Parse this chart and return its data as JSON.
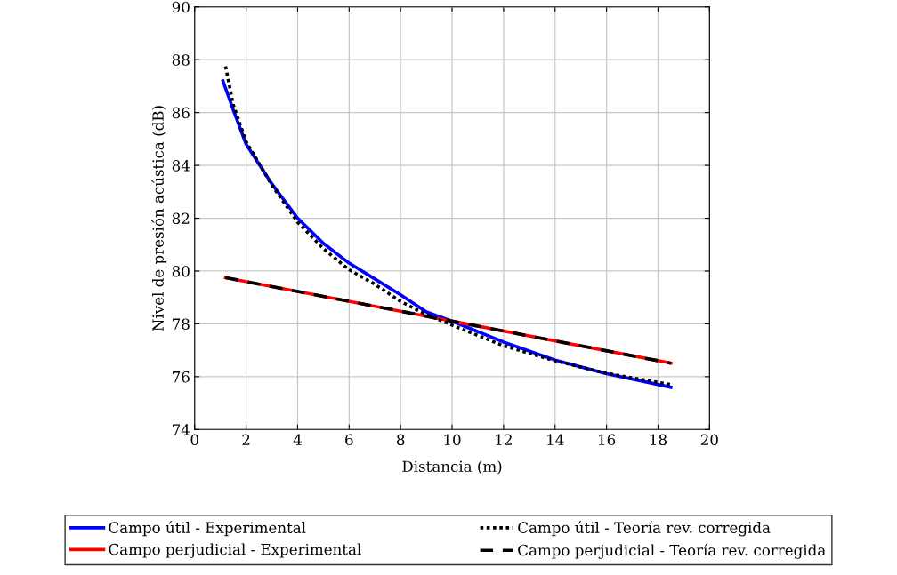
{
  "chart_data": {
    "type": "line",
    "xlabel": "Distancia (m)",
    "ylabel": "Nivel de presión acústica (dB)",
    "xlim": [
      0,
      20
    ],
    "xticks": [
      0,
      2,
      4,
      6,
      8,
      10,
      12,
      14,
      16,
      18,
      20
    ],
    "ylim": [
      74,
      90
    ],
    "yticks": [
      74,
      76,
      78,
      80,
      82,
      84,
      86,
      88,
      90
    ],
    "grid": true,
    "legend": "bottom",
    "marker": "none",
    "series": [
      {
        "name": "Campo útil - Experimental",
        "color": "#0000ff",
        "line_style": "solid",
        "x": [
          1.1,
          1.5,
          2,
          3,
          4,
          5,
          6,
          7,
          8,
          9,
          10,
          12,
          14,
          16,
          18.5
        ],
        "values": [
          87.2,
          86.1,
          84.8,
          83.3,
          82.0,
          81.05,
          80.3,
          79.7,
          79.1,
          78.45,
          78.1,
          77.31,
          76.63,
          76.11,
          75.6
        ]
      },
      {
        "name": "Campo perjudicial - Experimental",
        "color": "#ff0000",
        "line_style": "solid",
        "x": [
          1.2,
          18.5
        ],
        "values": [
          79.75,
          76.51
        ]
      },
      {
        "name": "Campo útil - Teoría rev. corregida",
        "color": "#000000",
        "line_style": "dotted",
        "x": [
          1.2,
          1.5,
          2,
          3,
          4,
          5,
          6,
          7,
          8,
          9,
          10,
          12,
          14,
          16,
          18.5
        ],
        "values": [
          87.75,
          86.3,
          84.9,
          83.25,
          81.85,
          80.85,
          80.05,
          79.5,
          78.85,
          78.35,
          77.95,
          77.17,
          76.6,
          76.13,
          75.7
        ]
      },
      {
        "name": "Campo perjudicial - Teoría rev. corregida",
        "color": "#000000",
        "line_style": "dashed",
        "x": [
          1.2,
          18.5
        ],
        "values": [
          79.75,
          76.51
        ]
      }
    ]
  }
}
